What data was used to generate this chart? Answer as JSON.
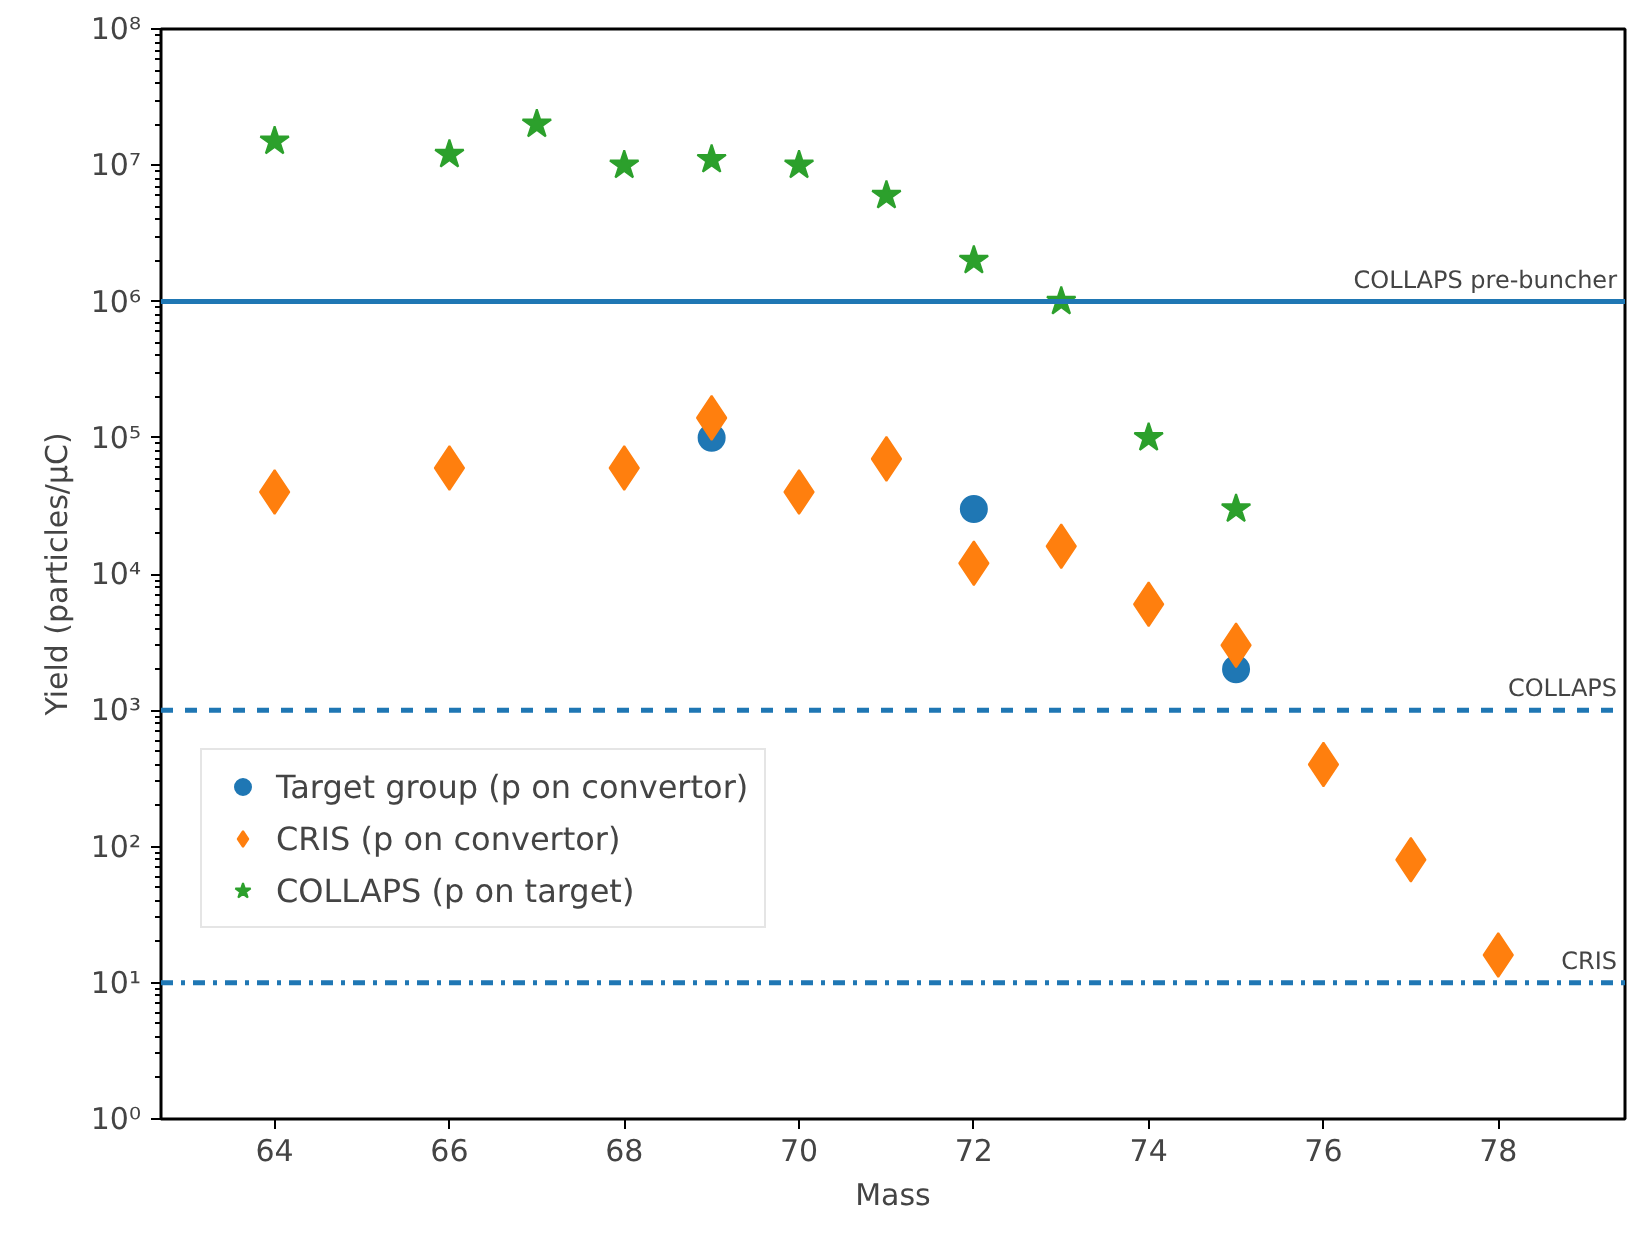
{
  "chart_data": {
    "type": "scatter",
    "xlabel": "Mass",
    "ylabel": "Yield (particles/μC)",
    "log": "y",
    "grid": false,
    "legend": "bottom left",
    "xlim": [
      62.7,
      79.45
    ],
    "xticks": [
      64,
      66,
      68,
      70,
      72,
      74,
      76,
      78
    ],
    "ylim": [
      1,
      100000000
    ],
    "yticks": [
      {
        "value": 1,
        "label": "10⁰"
      },
      {
        "value": 10,
        "label": "10¹"
      },
      {
        "value": 100,
        "label": "10²"
      },
      {
        "value": 1000,
        "label": "10³"
      },
      {
        "value": 10000,
        "label": "10⁴"
      },
      {
        "value": 100000,
        "label": "10⁵"
      },
      {
        "value": 1000000,
        "label": "10⁶"
      },
      {
        "value": 10000000,
        "label": "10⁷"
      },
      {
        "value": 100000000,
        "label": "10⁸"
      }
    ],
    "series": [
      {
        "name": "Target group (p on convertor)",
        "color": "#1f77b4",
        "marker": "circle",
        "x": [
          69,
          72,
          75
        ],
        "values": [
          100000,
          30000,
          2000
        ]
      },
      {
        "name": "CRIS (p on convertor)",
        "color": "#ff7f0e",
        "marker": "diamond",
        "x": [
          64,
          66,
          68,
          69,
          70,
          71,
          72,
          73,
          74,
          75,
          76,
          77,
          78
        ],
        "values": [
          40000,
          60000,
          60000,
          140000,
          40000,
          70000,
          12000,
          16000,
          6000,
          3000,
          400,
          80,
          16
        ]
      },
      {
        "name": "COLLAPS (p on target)",
        "color": "#2ca02c",
        "marker": "star",
        "x": [
          64,
          66,
          67,
          68,
          69,
          70,
          71,
          72,
          73,
          74,
          75
        ],
        "values": [
          15000000,
          12000000,
          20000000,
          10000000,
          11000000,
          10000000,
          6000000,
          2000000,
          1000000,
          100000,
          30000
        ]
      }
    ],
    "ref_lines": [
      {
        "axis": "y",
        "value": 1000000,
        "label": "COLLAPS pre-buncher",
        "color": "#1f77b4",
        "line_style": "solid"
      },
      {
        "axis": "y",
        "value": 1000,
        "label": "COLLAPS",
        "color": "#1f77b4",
        "line_style": "dashed"
      },
      {
        "axis": "y",
        "value": 10,
        "label": "CRIS",
        "color": "#1f77b4",
        "line_style": "dashdot"
      }
    ]
  }
}
